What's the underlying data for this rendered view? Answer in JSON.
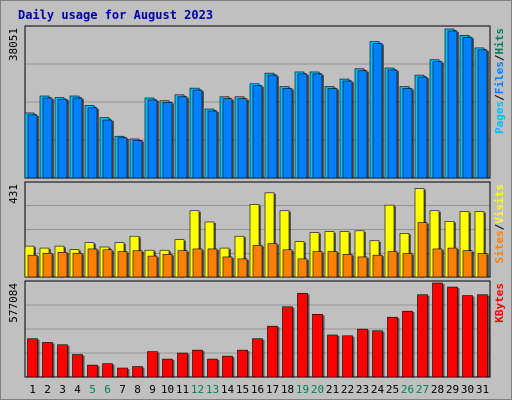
{
  "chart_data": {
    "type": "bar",
    "title": "Daily usage for August 2023",
    "categories": [
      "1",
      "2",
      "3",
      "4",
      "5",
      "6",
      "7",
      "8",
      "9",
      "10",
      "11",
      "12",
      "13",
      "14",
      "15",
      "16",
      "17",
      "18",
      "19",
      "20",
      "21",
      "22",
      "23",
      "24",
      "25",
      "26",
      "27",
      "28",
      "29",
      "30",
      "31"
    ],
    "weekend_days": [
      "5",
      "6",
      "12",
      "13",
      "19",
      "20",
      "26",
      "27"
    ],
    "colors": {
      "title": "#0000aa",
      "weekday_label": "#000000",
      "weekend_label": "#00805c",
      "background": "#c0c0c0",
      "gridline": "#000000",
      "hits": "#00bfff",
      "files": "#0080ff",
      "pages": "#00bfff",
      "visits": "#ffff00",
      "sites": "#ff8000",
      "kbytes": "#ff0000"
    },
    "panels": [
      {
        "name": "hits-files-pages",
        "max_label": "38051",
        "ymax": 38051,
        "legend": [
          {
            "text": "Pages",
            "color": "#00bfff"
          },
          {
            "text": "/",
            "color": "#000000"
          },
          {
            "text": "Files",
            "color": "#0080ff"
          },
          {
            "text": "/",
            "color": "#000000"
          },
          {
            "text": "Hits",
            "color": "#00805c"
          }
        ],
        "series": [
          {
            "name": "Hits",
            "values": [
              16500,
              20800,
              20400,
              20800,
              18400,
              15300,
              10600,
              9900,
              20300,
              19600,
              21100,
              22800,
              17500,
              20600,
              20600,
              23900,
              26600,
              23200,
              26900,
              26900,
              23200,
              25100,
              27700,
              34600,
              27900,
              23200,
              26100,
              30000,
              37800,
              36200,
              33000
            ]
          },
          {
            "name": "Files",
            "values": [
              16000,
              20300,
              20000,
              20300,
              17800,
              14700,
              10200,
              9500,
              19800,
              19200,
              20600,
              22300,
              17000,
              20100,
              20100,
              23400,
              26100,
              22700,
              26400,
              26400,
              22700,
              24600,
              27200,
              34100,
              27400,
              22700,
              25600,
              29500,
              37300,
              35700,
              32500
            ]
          }
        ]
      },
      {
        "name": "sites-visits",
        "max_label": "431",
        "ymax": 431,
        "legend": [
          {
            "text": "Sites",
            "color": "#ff8000"
          },
          {
            "text": "/",
            "color": "#000000"
          },
          {
            "text": "Visits",
            "color": "#ffff00"
          }
        ],
        "series": [
          {
            "name": "Visits",
            "values": [
              143,
              134,
              143,
              127,
              159,
              139,
              159,
              189,
              124,
              124,
              173,
              307,
              255,
              134,
              189,
              336,
              390,
              307,
              164,
              206,
              210,
              210,
              214,
              168,
              333,
              202,
              410,
              307,
              258,
              303,
              303
            ]
          },
          {
            "name": "Sites",
            "values": [
              101,
              110,
              114,
              110,
              130,
              126,
              118,
              122,
              97,
              105,
              122,
              130,
              130,
              93,
              84,
              147,
              155,
              126,
              84,
              118,
              118,
              105,
              93,
              101,
              118,
              109,
              252,
              130,
              134,
              122,
              109
            ]
          }
        ]
      },
      {
        "name": "kbytes",
        "max_label": "577084",
        "ymax": 577084,
        "legend": [
          {
            "text": "KBytes",
            "color": "#ff0000"
          }
        ],
        "series": [
          {
            "name": "KBytes",
            "values": [
              235000,
              212000,
              198000,
              138000,
              73000,
              82000,
              55000,
              64000,
              156000,
              110000,
              147000,
              165000,
              110000,
              128000,
              165000,
              235000,
              312000,
              431000,
              514000,
              385000,
              258000,
              253000,
              294000,
              284000,
              367000,
              404000,
              505000,
              577000,
              552000,
              500000,
              505000
            ]
          }
        ]
      }
    ]
  }
}
